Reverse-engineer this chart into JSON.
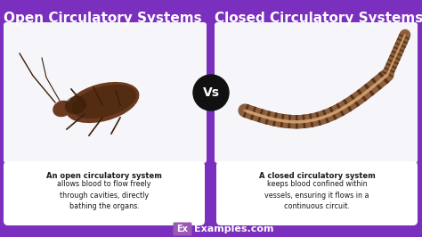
{
  "bg_color": "#7B2FBE",
  "title_left": "Open Circulatory Systems",
  "title_right": "Closed Circulatory Systems",
  "vs_text": "Vs",
  "left_bold": "An open circulatory system",
  "left_normal": "allows blood to flow freely\nthrough cavities, directly\nbathing the organs.",
  "right_bold": "A closed circulatory system",
  "right_normal": "keeps blood confined within\nvessels, ensuring it flows in a\ncontinuous circuit.",
  "watermark_ex": "Ex",
  "watermark_site": "Examples.com",
  "title_color": "#FFFFFF",
  "box_color": "#FFFFFF",
  "desc_color": "#1a1a1a",
  "vs_bg": "#111111",
  "vs_color": "#FFFFFF",
  "ex_bg": "#7B2FBE",
  "ex_color": "#FFFFFF",
  "site_color": "#FFFFFF",
  "white_box_bg": "#f5f5fa",
  "cockroach_body": "#6B3A1F",
  "cockroach_dark": "#3d1f08",
  "worm_body": "#8B5E3C",
  "worm_stripe": "#5C3317",
  "worm_light": "#D4A574"
}
